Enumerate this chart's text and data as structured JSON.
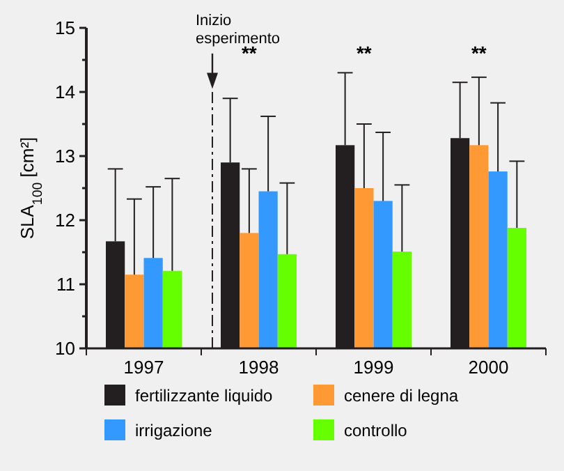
{
  "chart_data": {
    "type": "bar",
    "ylabel": "SLA$_{100}$ [cm²]",
    "categories": [
      "1997",
      "1998",
      "1999",
      "2000"
    ],
    "series": [
      {
        "name": "fertilizzante liquido",
        "color": "#231f20",
        "values": [
          11.67,
          12.9,
          13.17,
          13.28
        ],
        "errors": [
          [
            11.67,
            12.8
          ],
          [
            12.9,
            13.9
          ],
          [
            13.17,
            14.3
          ],
          [
            13.28,
            14.15
          ]
        ]
      },
      {
        "name": "cenere di legna",
        "color": "#ff9933",
        "values": [
          11.15,
          11.8,
          12.5,
          13.17
        ],
        "errors": [
          [
            11.15,
            12.33
          ],
          [
            11.8,
            12.8
          ],
          [
            12.5,
            13.5
          ],
          [
            13.17,
            14.23
          ]
        ]
      },
      {
        "name": "irrigazione",
        "color": "#3399ff",
        "values": [
          11.41,
          12.45,
          12.3,
          12.76
        ],
        "errors": [
          [
            11.41,
            12.52
          ],
          [
            12.45,
            13.62
          ],
          [
            12.3,
            13.37
          ],
          [
            12.76,
            13.83
          ]
        ]
      },
      {
        "name": "controllo",
        "color": "#66ff00",
        "values": [
          11.21,
          11.47,
          11.51,
          11.88
        ],
        "errors": [
          [
            11.21,
            12.65
          ],
          [
            11.47,
            12.58
          ],
          [
            11.51,
            12.55
          ],
          [
            11.88,
            12.92
          ]
        ]
      }
    ],
    "ylim": [
      10,
      15
    ],
    "yticks": [
      10,
      {
        "value": 10.5,
        "label": null
      },
      11,
      {
        "value": 11.5,
        "label": null
      },
      12,
      {
        "value": 12.5,
        "label": null
      },
      13,
      {
        "value": 13.5,
        "label": null
      },
      14,
      {
        "value": 14.5,
        "label": null
      },
      15
    ],
    "ref_lines": [
      {
        "axis": "x",
        "value": "1998",
        "label": "Inizio esperimento",
        "line_style": "dashed",
        "color": "#231f20"
      }
    ],
    "annotations": [
      "**",
      "**",
      "**"
    ],
    "legend": "bottom"
  }
}
